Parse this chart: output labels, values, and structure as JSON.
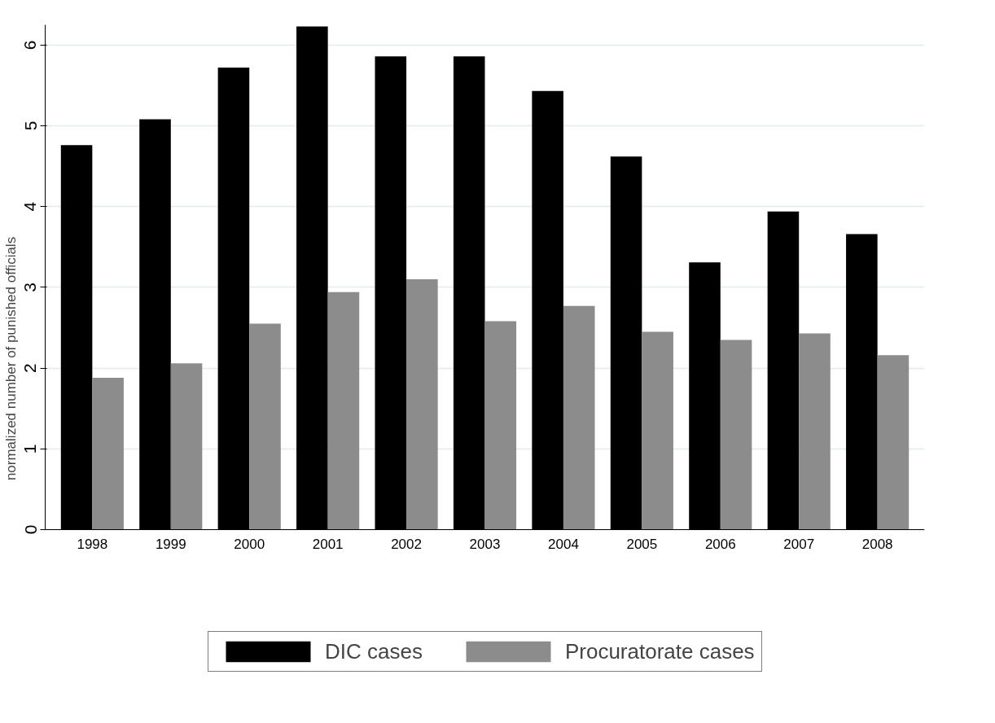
{
  "chart_data": {
    "type": "bar",
    "ylabel": "normalized number of punished officials",
    "categories": [
      "1998",
      "1999",
      "2000",
      "2001",
      "2002",
      "2003",
      "2004",
      "2005",
      "2006",
      "2007",
      "2008"
    ],
    "series": [
      {
        "name": "DIC cases",
        "color": "#000000",
        "values": [
          4.76,
          5.08,
          5.72,
          6.23,
          5.86,
          5.86,
          5.43,
          4.62,
          3.31,
          3.94,
          3.66
        ]
      },
      {
        "name": "Procuratorate cases",
        "color": "#8c8c8c",
        "values": [
          1.88,
          2.06,
          2.55,
          2.94,
          3.1,
          2.58,
          2.77,
          2.45,
          2.35,
          2.43,
          2.16
        ]
      }
    ],
    "ylim": [
      0,
      6.25
    ],
    "yticks": [
      0,
      1,
      2,
      3,
      4,
      5,
      6
    ],
    "grid": "y",
    "legend": "bottom"
  }
}
